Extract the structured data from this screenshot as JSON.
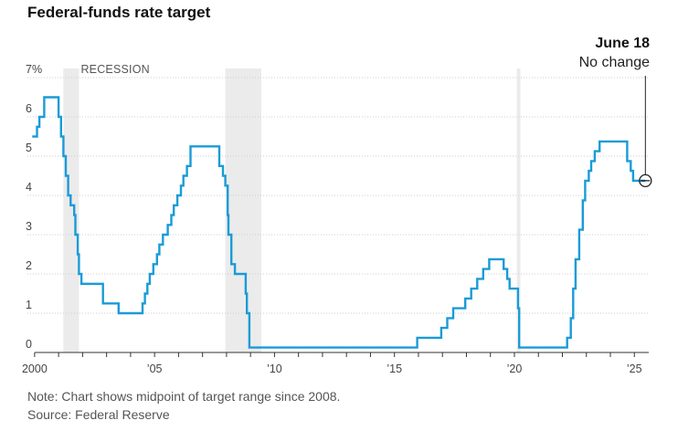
{
  "title": "Federal-funds rate target",
  "notes": {
    "note": "Note: Chart shows midpoint of target range since 2008.",
    "source": "Source: Federal Reserve"
  },
  "recession_label": "RECESSION",
  "annotation": {
    "date": "June 18",
    "text": "No change"
  },
  "colors": {
    "line": "#1a9bd7",
    "recession": "#ebebeb",
    "grid": "#cfcfcf",
    "axis": "#333333"
  },
  "chart_data": {
    "type": "line",
    "title": "Federal-funds rate target",
    "xlabel": "",
    "ylabel": "",
    "xlim": [
      1999.7,
      2025.6
    ],
    "ylim": [
      0,
      7
    ],
    "y_ticks": [
      0,
      1,
      2,
      3,
      4,
      5,
      6,
      7
    ],
    "y_tick_labels": [
      "0",
      "1",
      "2",
      "3",
      "4",
      "5",
      "6",
      "7%"
    ],
    "x_ticks": [
      2000,
      2005,
      2010,
      2015,
      2020,
      2025
    ],
    "x_tick_labels": [
      "2000",
      "’05",
      "’10",
      "’15",
      "’20",
      "’25"
    ],
    "grid": true,
    "recessions": [
      [
        2001.2,
        2001.85
      ],
      [
        2007.95,
        2009.45
      ],
      [
        2020.1,
        2020.25
      ]
    ],
    "series": [
      {
        "step": true,
        "points": [
          [
            1999.9,
            5.5
          ],
          [
            2000.1,
            5.75
          ],
          [
            2000.2,
            6.0
          ],
          [
            2000.4,
            6.5
          ],
          [
            2001.0,
            6.0
          ],
          [
            2001.1,
            5.5
          ],
          [
            2001.2,
            5.0
          ],
          [
            2001.3,
            4.5
          ],
          [
            2001.4,
            4.0
          ],
          [
            2001.5,
            3.75
          ],
          [
            2001.65,
            3.5
          ],
          [
            2001.7,
            3.0
          ],
          [
            2001.8,
            2.5
          ],
          [
            2001.85,
            2.0
          ],
          [
            2001.95,
            1.75
          ],
          [
            2002.85,
            1.25
          ],
          [
            2003.5,
            1.0
          ],
          [
            2004.5,
            1.25
          ],
          [
            2004.6,
            1.5
          ],
          [
            2004.7,
            1.75
          ],
          [
            2004.8,
            2.0
          ],
          [
            2004.95,
            2.25
          ],
          [
            2005.1,
            2.5
          ],
          [
            2005.2,
            2.75
          ],
          [
            2005.35,
            3.0
          ],
          [
            2005.55,
            3.25
          ],
          [
            2005.7,
            3.5
          ],
          [
            2005.8,
            3.75
          ],
          [
            2005.95,
            4.0
          ],
          [
            2006.1,
            4.25
          ],
          [
            2006.2,
            4.5
          ],
          [
            2006.35,
            4.75
          ],
          [
            2006.5,
            5.25
          ],
          [
            2007.7,
            4.75
          ],
          [
            2007.85,
            4.5
          ],
          [
            2007.95,
            4.25
          ],
          [
            2008.05,
            3.5
          ],
          [
            2008.08,
            3.0
          ],
          [
            2008.2,
            2.25
          ],
          [
            2008.35,
            2.0
          ],
          [
            2008.8,
            1.5
          ],
          [
            2008.85,
            1.0
          ],
          [
            2008.95,
            0.125
          ],
          [
            2015.95,
            0.375
          ],
          [
            2016.95,
            0.625
          ],
          [
            2017.2,
            0.875
          ],
          [
            2017.45,
            1.125
          ],
          [
            2017.95,
            1.375
          ],
          [
            2018.2,
            1.625
          ],
          [
            2018.45,
            1.875
          ],
          [
            2018.7,
            2.125
          ],
          [
            2018.95,
            2.375
          ],
          [
            2019.55,
            2.125
          ],
          [
            2019.7,
            1.875
          ],
          [
            2019.8,
            1.625
          ],
          [
            2020.15,
            1.125
          ],
          [
            2020.2,
            0.125
          ],
          [
            2022.2,
            0.375
          ],
          [
            2022.35,
            0.875
          ],
          [
            2022.45,
            1.625
          ],
          [
            2022.55,
            2.375
          ],
          [
            2022.7,
            3.125
          ],
          [
            2022.85,
            3.875
          ],
          [
            2022.95,
            4.375
          ],
          [
            2023.1,
            4.625
          ],
          [
            2023.2,
            4.875
          ],
          [
            2023.35,
            5.125
          ],
          [
            2023.55,
            5.375
          ],
          [
            2024.7,
            4.875
          ],
          [
            2024.85,
            4.625
          ],
          [
            2024.95,
            4.375
          ],
          [
            2025.46,
            4.375
          ]
        ]
      }
    ]
  }
}
